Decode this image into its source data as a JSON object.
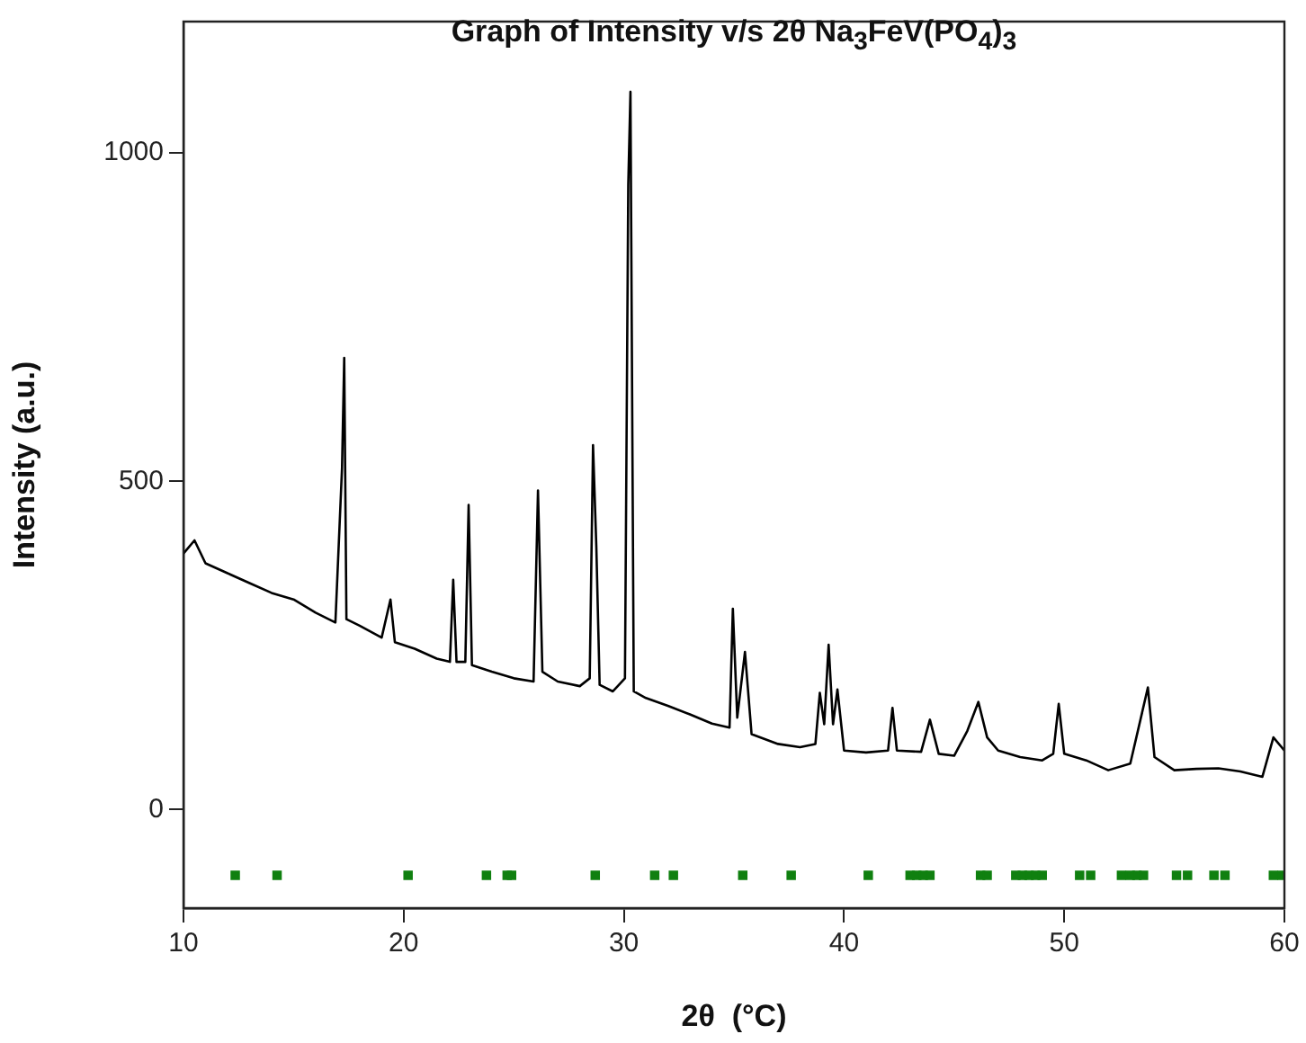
{
  "chart_data": {
    "type": "line",
    "title": "Graph of Intensity v/s 2θ Na$_{3}$FeV(PO$_{4}$)$_{3}$",
    "xlabel": "2θ  (°C)",
    "ylabel": "Intensity (a.u.)",
    "xlim": [
      10,
      60
    ],
    "xticks": [
      10,
      20,
      30,
      40,
      50,
      60
    ],
    "ylim": [
      -150,
      1200
    ],
    "yticks": [
      0,
      500,
      1000
    ],
    "legend": false,
    "series": [
      {
        "color": "#000000",
        "x": [
          10,
          10.5,
          11,
          12,
          13,
          14,
          15,
          16,
          16.9,
          17.2,
          17.3,
          17.4,
          18,
          19,
          19.4,
          19.6,
          20.5,
          21.5,
          22.1,
          22.25,
          22.4,
          22.8,
          22.95,
          23.1,
          24,
          25,
          25.9,
          26.1,
          26.3,
          27,
          28,
          28.45,
          28.6,
          28.75,
          28.9,
          29.5,
          30.05,
          30.2,
          30.3,
          30.45,
          31,
          32,
          33,
          34,
          34.8,
          34.95,
          35.15,
          35.5,
          35.8,
          37,
          38,
          38.7,
          38.9,
          39.1,
          39.3,
          39.5,
          39.7,
          40,
          41,
          42,
          42.2,
          42.4,
          43.5,
          43.9,
          44.3,
          45,
          45.6,
          46.1,
          46.5,
          47,
          48,
          49,
          49.5,
          49.75,
          50,
          51,
          52,
          53,
          53.8,
          54.1,
          55,
          56,
          57,
          58,
          59,
          59.5,
          60
        ],
        "values": [
          390,
          410,
          375,
          360,
          345,
          330,
          320,
          300,
          285,
          520,
          688,
          290,
          280,
          262,
          320,
          255,
          245,
          230,
          225,
          350,
          225,
          225,
          464,
          220,
          210,
          200,
          195,
          486,
          210,
          195,
          188,
          200,
          555,
          400,
          190,
          180,
          200,
          951,
          1093,
          180,
          170,
          158,
          145,
          131,
          125,
          306,
          140,
          240,
          115,
          100,
          95,
          100,
          178,
          130,
          251,
          130,
          183,
          90,
          87,
          90,
          155,
          90,
          88,
          137,
          85,
          82,
          120,
          164,
          110,
          90,
          80,
          75,
          85,
          161,
          85,
          75,
          60,
          70,
          186,
          80,
          60,
          62,
          63,
          58,
          50,
          110,
          90
        ]
      },
      {
        "type": "scatter",
        "marker": "square",
        "color": "#108010",
        "x": [
          12.35,
          14.25,
          20.2,
          23.76,
          24.7,
          24.9,
          28.7,
          31.4,
          32.25,
          35.4,
          37.6,
          41.1,
          43.0,
          43.3,
          43.6,
          43.9,
          46.2,
          46.5,
          47.8,
          48.1,
          48.4,
          48.7,
          49.0,
          50.7,
          51.2,
          52.6,
          53.0,
          53.3,
          53.6,
          55.1,
          55.6,
          56.8,
          57.3,
          59.5,
          59.9
        ],
        "values": [
          -100,
          -100,
          -100,
          -100,
          -100,
          -100,
          -100,
          -100,
          -100,
          -100,
          -100,
          -100,
          -100,
          -100,
          -100,
          -100,
          -100,
          -100,
          -100,
          -100,
          -100,
          -100,
          -100,
          -100,
          -100,
          -100,
          -100,
          -100,
          -100,
          -100,
          -100,
          -100,
          -100,
          -100,
          -100
        ]
      }
    ]
  }
}
